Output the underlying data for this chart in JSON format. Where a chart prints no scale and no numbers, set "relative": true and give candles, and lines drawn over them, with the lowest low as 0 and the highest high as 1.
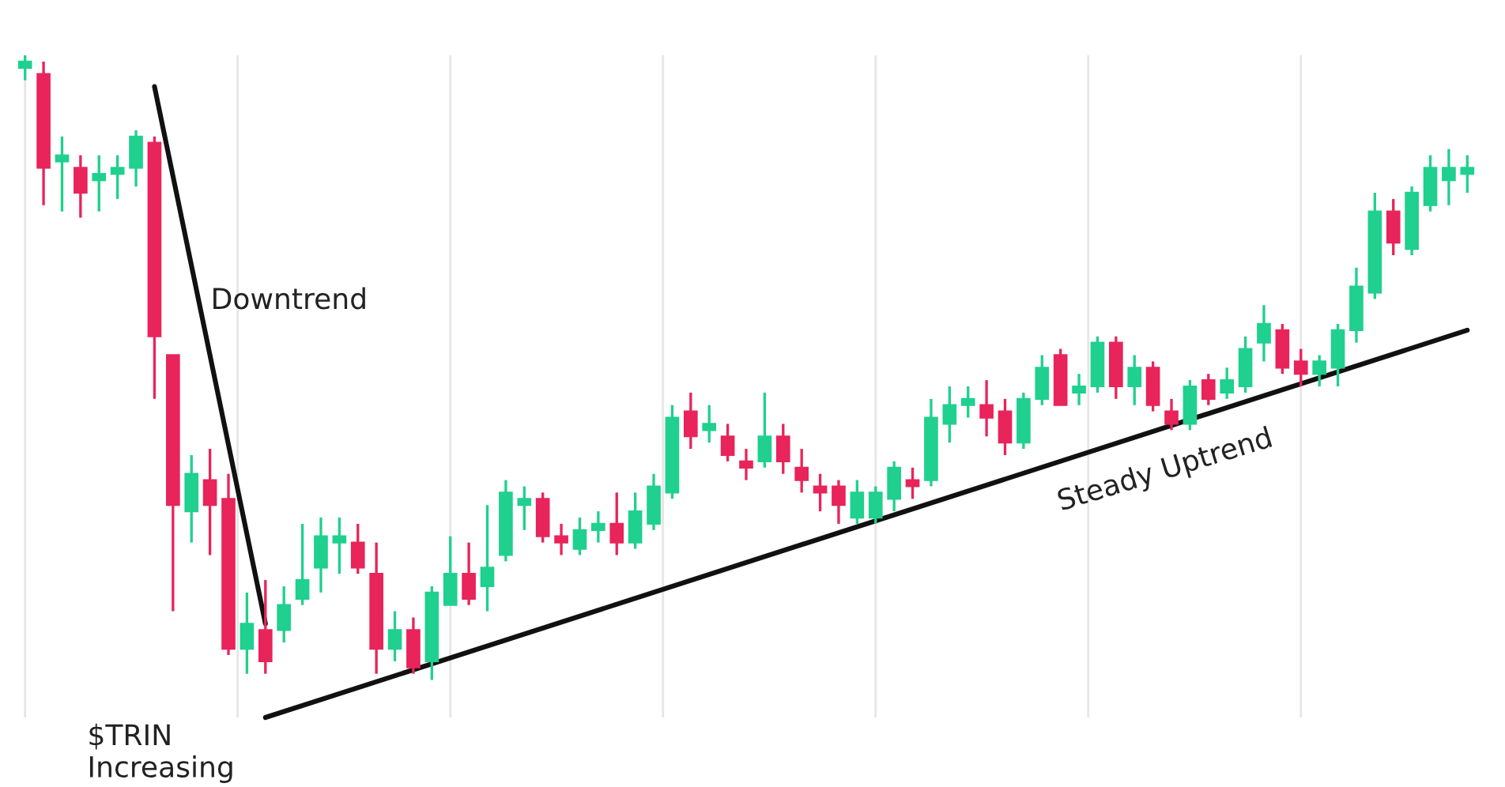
{
  "chart_data": {
    "type": "candlestick",
    "relative": true,
    "grid": true,
    "categories": [
      null,
      null,
      null,
      null,
      null,
      null,
      null,
      null,
      null,
      null,
      null,
      null,
      null,
      null,
      null,
      null,
      null,
      null,
      null,
      null,
      null,
      null,
      null,
      null,
      null,
      null,
      null,
      null,
      null,
      null,
      null,
      null,
      null,
      null,
      null,
      null,
      null,
      null,
      null,
      null,
      null,
      null,
      null,
      null,
      null,
      null,
      null,
      null,
      null,
      null,
      null,
      null,
      null,
      null,
      null,
      null,
      null,
      null,
      null,
      null,
      null,
      null,
      null,
      null,
      null,
      null,
      null,
      null,
      null,
      null,
      null,
      null,
      null,
      null,
      null,
      null,
      null,
      null,
      null
    ],
    "ohlc": [
      [
        0.98,
        1.0,
        0.96,
        0.99
      ],
      [
        0.97,
        0.99,
        0.76,
        0.82
      ],
      [
        0.83,
        0.87,
        0.75,
        0.84
      ],
      [
        0.82,
        0.84,
        0.74,
        0.78
      ],
      [
        0.8,
        0.84,
        0.75,
        0.81
      ],
      [
        0.81,
        0.84,
        0.77,
        0.82
      ],
      [
        0.82,
        0.88,
        0.79,
        0.87
      ],
      [
        0.86,
        0.87,
        0.45,
        0.55
      ],
      [
        0.52,
        0.52,
        0.11,
        0.28
      ],
      [
        0.27,
        0.36,
        0.22,
        0.33
      ],
      [
        0.32,
        0.37,
        0.2,
        0.28
      ],
      [
        0.29,
        0.33,
        0.04,
        0.05
      ],
      [
        0.05,
        0.14,
        0.01,
        0.09
      ],
      [
        0.08,
        0.16,
        0.01,
        0.03
      ],
      [
        0.08,
        0.15,
        0.06,
        0.12
      ],
      [
        0.13,
        0.25,
        0.12,
        0.16
      ],
      [
        0.18,
        0.26,
        0.14,
        0.23
      ],
      [
        0.22,
        0.26,
        0.17,
        0.23
      ],
      [
        0.22,
        0.25,
        0.17,
        0.18
      ],
      [
        0.17,
        0.22,
        0.01,
        0.05
      ],
      [
        0.05,
        0.11,
        0.03,
        0.08
      ],
      [
        0.08,
        0.1,
        0.01,
        0.02
      ],
      [
        0.03,
        0.15,
        0.0,
        0.14
      ],
      [
        0.12,
        0.23,
        0.12,
        0.17
      ],
      [
        0.17,
        0.22,
        0.12,
        0.13
      ],
      [
        0.15,
        0.28,
        0.11,
        0.18
      ],
      [
        0.2,
        0.32,
        0.19,
        0.3
      ],
      [
        0.28,
        0.31,
        0.24,
        0.29
      ],
      [
        0.29,
        0.3,
        0.22,
        0.23
      ],
      [
        0.23,
        0.25,
        0.2,
        0.22
      ],
      [
        0.21,
        0.26,
        0.2,
        0.24
      ],
      [
        0.24,
        0.27,
        0.22,
        0.25
      ],
      [
        0.25,
        0.3,
        0.2,
        0.22
      ],
      [
        0.22,
        0.3,
        0.21,
        0.27
      ],
      [
        0.25,
        0.33,
        0.24,
        0.31
      ],
      [
        0.3,
        0.44,
        0.29,
        0.42
      ],
      [
        0.43,
        0.46,
        0.37,
        0.39
      ],
      [
        0.4,
        0.44,
        0.38,
        0.41
      ],
      [
        0.39,
        0.41,
        0.35,
        0.36
      ],
      [
        0.35,
        0.37,
        0.32,
        0.34
      ],
      [
        0.35,
        0.46,
        0.34,
        0.39
      ],
      [
        0.39,
        0.41,
        0.33,
        0.35
      ],
      [
        0.34,
        0.37,
        0.3,
        0.32
      ],
      [
        0.31,
        0.33,
        0.27,
        0.3
      ],
      [
        0.31,
        0.32,
        0.25,
        0.28
      ],
      [
        0.26,
        0.32,
        0.25,
        0.3
      ],
      [
        0.26,
        0.31,
        0.25,
        0.3
      ],
      [
        0.29,
        0.35,
        0.27,
        0.34
      ],
      [
        0.32,
        0.34,
        0.29,
        0.31
      ],
      [
        0.32,
        0.45,
        0.31,
        0.42
      ],
      [
        0.41,
        0.47,
        0.38,
        0.44
      ],
      [
        0.44,
        0.47,
        0.42,
        0.45
      ],
      [
        0.44,
        0.48,
        0.39,
        0.42
      ],
      [
        0.43,
        0.45,
        0.36,
        0.38
      ],
      [
        0.38,
        0.46,
        0.37,
        0.45
      ],
      [
        0.45,
        0.52,
        0.44,
        0.5
      ],
      [
        0.52,
        0.53,
        0.44,
        0.44
      ],
      [
        0.46,
        0.49,
        0.44,
        0.47
      ],
      [
        0.47,
        0.55,
        0.46,
        0.54
      ],
      [
        0.54,
        0.55,
        0.45,
        0.47
      ],
      [
        0.47,
        0.52,
        0.44,
        0.5
      ],
      [
        0.5,
        0.51,
        0.43,
        0.44
      ],
      [
        0.43,
        0.45,
        0.4,
        0.41
      ],
      [
        0.41,
        0.48,
        0.4,
        0.47
      ],
      [
        0.48,
        0.49,
        0.44,
        0.45
      ],
      [
        0.46,
        0.5,
        0.45,
        0.48
      ],
      [
        0.47,
        0.55,
        0.46,
        0.53
      ],
      [
        0.54,
        0.6,
        0.51,
        0.57
      ],
      [
        0.56,
        0.57,
        0.49,
        0.5
      ],
      [
        0.51,
        0.53,
        0.47,
        0.49
      ],
      [
        0.49,
        0.52,
        0.47,
        0.51
      ],
      [
        0.5,
        0.57,
        0.47,
        0.56
      ],
      [
        0.56,
        0.66,
        0.54,
        0.63
      ],
      [
        0.62,
        0.78,
        0.61,
        0.75
      ],
      [
        0.75,
        0.77,
        0.68,
        0.7
      ],
      [
        0.69,
        0.79,
        0.68,
        0.78
      ],
      [
        0.76,
        0.84,
        0.75,
        0.82
      ],
      [
        0.8,
        0.85,
        0.76,
        0.82
      ],
      [
        0.81,
        0.84,
        0.78,
        0.82
      ]
    ],
    "colors": [
      "#1fd08f",
      "#e8245a",
      "#1fd08f",
      "#e8245a",
      "#1fd08f",
      "#1fd08f",
      "#1fd08f",
      "#e8245a",
      "#e8245a",
      "#1fd08f",
      "#e8245a",
      "#e8245a",
      "#1fd08f",
      "#e8245a",
      "#1fd08f",
      "#1fd08f",
      "#1fd08f",
      "#1fd08f",
      "#e8245a",
      "#e8245a",
      "#1fd08f",
      "#e8245a",
      "#1fd08f",
      "#1fd08f",
      "#e8245a",
      "#1fd08f",
      "#1fd08f",
      "#1fd08f",
      "#e8245a",
      "#e8245a",
      "#1fd08f",
      "#1fd08f",
      "#e8245a",
      "#1fd08f",
      "#1fd08f",
      "#1fd08f",
      "#e8245a",
      "#1fd08f",
      "#e8245a",
      "#e8245a",
      "#1fd08f",
      "#e8245a",
      "#e8245a",
      "#e8245a",
      "#e8245a",
      "#1fd08f",
      "#1fd08f",
      "#1fd08f",
      "#e8245a",
      "#1fd08f",
      "#1fd08f",
      "#1fd08f",
      "#e8245a",
      "#e8245a",
      "#1fd08f",
      "#1fd08f",
      "#e8245a",
      "#1fd08f",
      "#1fd08f",
      "#e8245a",
      "#1fd08f",
      "#e8245a",
      "#e8245a",
      "#1fd08f",
      "#e8245a",
      "#1fd08f",
      "#1fd08f",
      "#1fd08f",
      "#e8245a",
      "#e8245a",
      "#1fd08f",
      "#1fd08f",
      "#1fd08f",
      "#1fd08f",
      "#e8245a",
      "#1fd08f",
      "#1fd08f",
      "#1fd08f",
      "#1fd08f"
    ],
    "series": [
      {
        "type": "line",
        "color": "#111111",
        "values": [
          null,
          null,
          null,
          null,
          null,
          null,
          null,
          0.95,
          null,
          null,
          null,
          null,
          null,
          0.09,
          null,
          null,
          null,
          null,
          null,
          null,
          null,
          null,
          null,
          null,
          null,
          null,
          null,
          null,
          null,
          null,
          null,
          null,
          null,
          null,
          null,
          null,
          null,
          null,
          null,
          null,
          null,
          null,
          null,
          null,
          null,
          null,
          null,
          null,
          null,
          null,
          null,
          null,
          null,
          null,
          null,
          null,
          null,
          null,
          null,
          null,
          null,
          null,
          null,
          null,
          null,
          null,
          null,
          null,
          null,
          null,
          null,
          null,
          null,
          null,
          null,
          null,
          null,
          null,
          null
        ]
      },
      {
        "type": "line",
        "color": "#111111",
        "values": [
          null,
          null,
          null,
          null,
          null,
          null,
          null,
          null,
          null,
          null,
          null,
          null,
          null,
          -0.06,
          null,
          null,
          null,
          null,
          null,
          null,
          null,
          null,
          null,
          null,
          null,
          null,
          null,
          null,
          null,
          null,
          null,
          null,
          null,
          null,
          null,
          null,
          null,
          null,
          null,
          null,
          null,
          null,
          null,
          null,
          null,
          null,
          null,
          null,
          null,
          null,
          null,
          null,
          null,
          null,
          null,
          null,
          null,
          null,
          null,
          null,
          null,
          null,
          null,
          null,
          null,
          null,
          null,
          null,
          null,
          null,
          null,
          null,
          null,
          null,
          null,
          null,
          null,
          null,
          0.56
        ]
      }
    ],
    "annotations": [
      "Downtrend",
      "Steady Uptrend",
      "$TRIN\nIncreasing"
    ]
  }
}
